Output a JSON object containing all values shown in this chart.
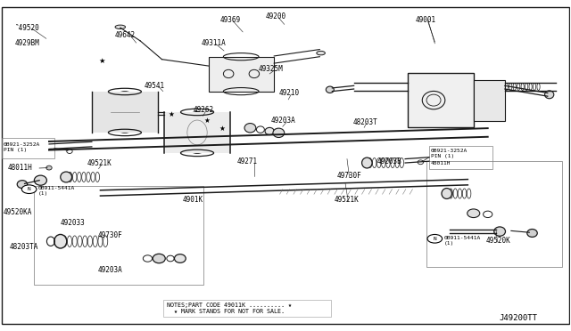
{
  "bg_color": "#ffffff",
  "diagram_color": "#1a1a1a",
  "fig_width": 6.4,
  "fig_height": 3.72,
  "dpi": 100,
  "diagram_code": "J49200TT",
  "note_line1": "NOTES;PART CODE 49011K .......... ★",
  "note_line2": "  ★ MARK STANDS FOR NOT FOR SALE."
}
